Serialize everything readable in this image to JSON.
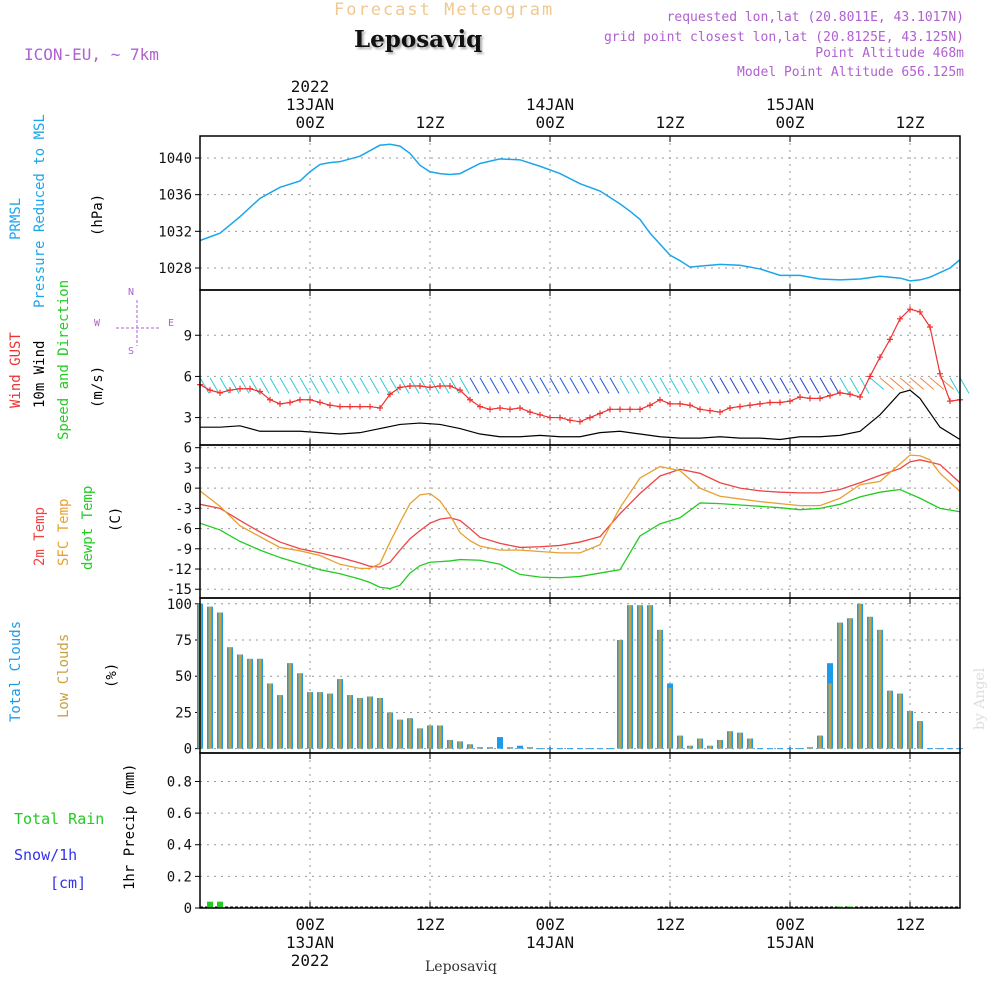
{
  "header": {
    "subtitle": "Forecast Meteogram",
    "title": "Leposaviq",
    "model": "ICON-EU, ~ 7km",
    "requested": "requested lon,lat (20.8011E, 43.1017N)",
    "grid_point": "grid point closest lon,lat (20.8125E, 43.125N)",
    "point_alt": "Point Altitude 468m",
    "model_alt": "Model Point Altitude 656.125m",
    "watermark": "by Angel",
    "footer": "Leposaviq"
  },
  "time_axis": {
    "top_year": "2022",
    "bottom_year": "2022",
    "major": [
      {
        "t": 0,
        "hour": "00Z",
        "date": "13JAN"
      },
      {
        "t": 12,
        "hour": "12Z",
        "date": ""
      },
      {
        "t": 24,
        "hour": "00Z",
        "date": "14JAN"
      },
      {
        "t": 36,
        "hour": "12Z",
        "date": ""
      },
      {
        "t": 48,
        "hour": "00Z",
        "date": "15JAN"
      },
      {
        "t": 60,
        "hour": "12Z",
        "date": ""
      }
    ],
    "range_hours": [
      -11,
      65
    ]
  },
  "colors": {
    "pressure": "#1ba6ea",
    "gust": "#ee3333",
    "wind": "#000000",
    "temp": "#ee4444",
    "sfc": "#e8a030",
    "dewpt": "#22cc22",
    "total_clouds": "#1c9bea",
    "low_clouds": "#c8a040",
    "rain": "#22cc22",
    "snow": "#3333ee",
    "label_purple": "#b060d0"
  },
  "panel_labels": {
    "pressure": {
      "line1": "PRMSL",
      "line2": "Pressure Reduced to MSL",
      "unit": "(hPa)"
    },
    "wind": {
      "line1": "Wind GUST",
      "line2": "10m Wind",
      "line3": "Speed and Direction",
      "unit": "(m/s)",
      "compass_n": "N",
      "compass_s": "S",
      "compass_w": "W",
      "compass_e": "E"
    },
    "temp": {
      "line1": "2m Temp",
      "line2": "SFC Temp",
      "line3": "dewpt Temp",
      "unit": "(C)"
    },
    "clouds": {
      "line1": "Total Clouds",
      "line2": "Low Clouds",
      "unit": "(%)"
    },
    "precip": {
      "line1": "Total  Rain",
      "line2": "Snow/1h",
      "line3": "[cm]",
      "unit": "1hr Precip (mm)"
    }
  },
  "chart_data": [
    {
      "type": "line",
      "name": "pressure",
      "ylabel": "(hPa)",
      "yticks": [
        1028,
        1032,
        1036,
        1040
      ],
      "ylim": [
        1025.6,
        1042.4
      ],
      "x": [
        -11,
        -9,
        -7,
        -5,
        -3,
        -1,
        0,
        1,
        2,
        3,
        5,
        7,
        8,
        9,
        10,
        11,
        12,
        13,
        14,
        15,
        17,
        19,
        21,
        23,
        25,
        27,
        29,
        31,
        32,
        33,
        34,
        35,
        36,
        37,
        38,
        39,
        41,
        43,
        45,
        47,
        49,
        51,
        53,
        55,
        57,
        59,
        60,
        61,
        62,
        64,
        65
      ],
      "values": [
        1031,
        1031.8,
        1033.6,
        1035.6,
        1036.8,
        1037.5,
        1038.5,
        1039.3,
        1039.5,
        1039.6,
        1040.2,
        1041.4,
        1041.5,
        1041.3,
        1040.5,
        1039.2,
        1038.5,
        1038.3,
        1038.2,
        1038.3,
        1039.4,
        1039.9,
        1039.8,
        1039.1,
        1038.3,
        1037.2,
        1036.4,
        1035,
        1034.2,
        1033.3,
        1031.8,
        1030.6,
        1029.4,
        1028.8,
        1028.1,
        1028.2,
        1028.4,
        1028.3,
        1027.9,
        1027.2,
        1027.2,
        1026.8,
        1026.7,
        1026.8,
        1027.1,
        1026.9,
        1026.6,
        1026.7,
        1027,
        1028,
        1028.9
      ]
    },
    {
      "type": "line",
      "name": "wind",
      "ylabel": "(m/s)",
      "yticks": [
        3,
        6,
        9
      ],
      "ylim": [
        1,
        12.3
      ],
      "series": [
        {
          "name": "Wind GUST",
          "color": "#ee3333",
          "x": [
            -11,
            -10,
            -9,
            -8,
            -7,
            -6,
            -5,
            -4,
            -3,
            -2,
            -1,
            0,
            1,
            2,
            3,
            4,
            5,
            6,
            7,
            8,
            9,
            10,
            11,
            12,
            13,
            14,
            15,
            16,
            17,
            18,
            19,
            20,
            21,
            22,
            23,
            24,
            25,
            26,
            27,
            28,
            29,
            30,
            31,
            32,
            33,
            34,
            35,
            36,
            37,
            38,
            39,
            40,
            41,
            42,
            43,
            44,
            45,
            46,
            47,
            48,
            49,
            50,
            51,
            52,
            53,
            54,
            55,
            56,
            57,
            58,
            59,
            60,
            61,
            62,
            63,
            64,
            65
          ],
          "values": [
            5.4,
            5.0,
            4.8,
            5.0,
            5.1,
            5.1,
            4.9,
            4.3,
            4.0,
            4.1,
            4.3,
            4.3,
            4.1,
            3.9,
            3.8,
            3.8,
            3.8,
            3.8,
            3.7,
            4.7,
            5.2,
            5.3,
            5.3,
            5.2,
            5.3,
            5.3,
            5.0,
            4.3,
            3.8,
            3.6,
            3.7,
            3.6,
            3.7,
            3.4,
            3.2,
            3.0,
            3.0,
            2.8,
            2.7,
            3.0,
            3.3,
            3.6,
            3.6,
            3.6,
            3.6,
            3.9,
            4.3,
            4.0,
            4.0,
            3.9,
            3.6,
            3.5,
            3.4,
            3.7,
            3.8,
            3.9,
            4.0,
            4.1,
            4.1,
            4.2,
            4.5,
            4.4,
            4.4,
            4.6,
            4.8,
            4.7,
            4.5,
            6.0,
            7.4,
            8.7,
            10.2,
            10.9,
            10.7,
            9.6,
            6.2,
            4.2,
            4.3
          ]
        },
        {
          "name": "10m Wind",
          "color": "#000000",
          "x": [
            -11,
            -9,
            -7,
            -5,
            -3,
            -1,
            1,
            3,
            5,
            7,
            9,
            11,
            13,
            15,
            17,
            19,
            21,
            23,
            25,
            27,
            29,
            31,
            33,
            35,
            37,
            39,
            41,
            43,
            45,
            47,
            49,
            51,
            53,
            55,
            57,
            59,
            60,
            61,
            63,
            65
          ],
          "values": [
            2.3,
            2.3,
            2.4,
            2.0,
            2.0,
            2.0,
            1.9,
            1.8,
            1.9,
            2.2,
            2.5,
            2.6,
            2.5,
            2.2,
            1.8,
            1.6,
            1.6,
            1.7,
            1.6,
            1.6,
            1.9,
            2.0,
            1.8,
            1.6,
            1.5,
            1.5,
            1.6,
            1.5,
            1.5,
            1.4,
            1.6,
            1.6,
            1.7,
            2.0,
            3.2,
            4.8,
            5.0,
            4.4,
            2.3,
            1.4
          ]
        }
      ]
    },
    {
      "type": "line",
      "name": "temperature",
      "ylabel": "(C)",
      "yticks": [
        -15,
        -12,
        -9,
        -6,
        -3,
        0,
        3,
        6
      ],
      "ylim": [
        -16.3,
        6.4
      ],
      "series": [
        {
          "name": "2m Temp",
          "color": "#ee4444",
          "x": [
            -11,
            -9,
            -7,
            -5,
            -3,
            -1,
            1,
            3,
            5,
            6,
            7,
            8,
            9,
            10,
            11,
            12,
            13,
            14,
            15,
            16,
            17,
            19,
            21,
            23,
            25,
            27,
            29,
            31,
            33,
            35,
            37,
            39,
            41,
            43,
            45,
            47,
            49,
            51,
            53,
            55,
            57,
            59,
            60,
            61,
            63,
            65
          ],
          "values": [
            -2.4,
            -3.0,
            -4.8,
            -6.5,
            -8.0,
            -9.0,
            -9.6,
            -10.3,
            -11.1,
            -11.6,
            -11.7,
            -11.0,
            -9.2,
            -7.5,
            -6.3,
            -5.2,
            -4.6,
            -4.4,
            -4.8,
            -6.0,
            -7.3,
            -8.2,
            -8.8,
            -8.7,
            -8.5,
            -8.0,
            -7.2,
            -3.8,
            -0.8,
            1.8,
            2.8,
            2.2,
            0.8,
            0.0,
            -0.4,
            -0.6,
            -0.7,
            -0.7,
            -0.2,
            0.8,
            1.9,
            2.9,
            3.9,
            4.2,
            3.5,
            0.8
          ]
        },
        {
          "name": "SFC Temp",
          "color": "#e8a030",
          "x": [
            -11,
            -9,
            -7,
            -5,
            -3,
            -1,
            1,
            3,
            5,
            6,
            7,
            8,
            9,
            10,
            11,
            12,
            13,
            14,
            15,
            16,
            17,
            19,
            21,
            23,
            25,
            27,
            29,
            31,
            33,
            35,
            37,
            39,
            41,
            43,
            45,
            47,
            49,
            51,
            53,
            55,
            57,
            59,
            60,
            61,
            62,
            63,
            65
          ],
          "values": [
            -0.4,
            -2.7,
            -5.6,
            -7.2,
            -8.8,
            -9.3,
            -10.0,
            -11.3,
            -11.9,
            -11.9,
            -11.2,
            -8.0,
            -5.1,
            -2.3,
            -1.0,
            -0.8,
            -1.9,
            -4.0,
            -6.6,
            -7.8,
            -8.6,
            -9.2,
            -9.2,
            -9.4,
            -9.6,
            -9.6,
            -8.4,
            -2.9,
            1.5,
            3.2,
            2.6,
            0.0,
            -1.2,
            -1.6,
            -2.0,
            -2.3,
            -2.6,
            -2.6,
            -1.5,
            0.5,
            1.0,
            3.6,
            4.9,
            4.8,
            4.2,
            2.2,
            -0.5
          ]
        },
        {
          "name": "dewpt Temp",
          "color": "#22cc22",
          "x": [
            -11,
            -9,
            -7,
            -5,
            -3,
            -1,
            1,
            3,
            5,
            6,
            7,
            8,
            9,
            10,
            11,
            12,
            13,
            14,
            15,
            17,
            19,
            21,
            23,
            25,
            27,
            29,
            31,
            33,
            35,
            37,
            39,
            41,
            43,
            45,
            47,
            49,
            51,
            53,
            55,
            57,
            59,
            61,
            63,
            65
          ],
          "values": [
            -5.2,
            -6.2,
            -7.9,
            -9.2,
            -10.3,
            -11.2,
            -12.1,
            -12.7,
            -13.5,
            -14.0,
            -14.7,
            -14.9,
            -14.4,
            -12.6,
            -11.5,
            -11.0,
            -10.9,
            -10.8,
            -10.6,
            -10.7,
            -11.3,
            -12.8,
            -13.2,
            -13.3,
            -13.1,
            -12.6,
            -12.1,
            -7.1,
            -5.3,
            -4.4,
            -2.2,
            -2.3,
            -2.5,
            -2.7,
            -2.9,
            -3.2,
            -3.0,
            -2.4,
            -1.3,
            -0.6,
            -0.2,
            -1.5,
            -3.0,
            -3.5
          ]
        }
      ]
    },
    {
      "type": "bar",
      "name": "clouds",
      "ylabel": "(%)",
      "yticks": [
        0,
        25,
        50,
        75,
        100
      ],
      "ylim": [
        -3,
        104
      ],
      "x": [
        -11,
        -10,
        -9,
        -8,
        -7,
        -6,
        -5,
        -4,
        -3,
        -2,
        -1,
        0,
        1,
        2,
        3,
        4,
        5,
        6,
        7,
        8,
        9,
        10,
        11,
        12,
        13,
        14,
        15,
        16,
        17,
        18,
        19,
        20,
        21,
        22,
        23,
        24,
        25,
        26,
        27,
        28,
        29,
        30,
        31,
        32,
        33,
        34,
        35,
        36,
        37,
        38,
        39,
        40,
        41,
        42,
        43,
        44,
        45,
        46,
        47,
        48,
        49,
        50,
        51,
        52,
        53,
        54,
        55,
        56,
        57,
        58,
        59,
        60,
        61,
        62,
        63,
        64,
        65
      ],
      "series": [
        {
          "name": "Total Clouds",
          "color": "#1c9bea",
          "values": [
            100,
            98,
            94,
            70,
            65,
            62,
            62,
            45,
            37,
            59,
            52,
            39,
            39,
            38,
            48,
            37,
            35,
            36,
            35,
            25,
            20,
            21,
            14,
            16,
            16,
            6,
            5,
            3,
            1,
            1,
            8,
            1,
            2,
            1,
            0,
            0,
            0,
            0,
            0,
            0,
            0,
            0,
            75,
            99,
            99,
            99,
            82,
            45,
            9,
            2,
            7,
            2,
            6,
            12,
            11,
            7,
            0,
            0,
            0,
            0,
            0,
            1,
            9,
            59,
            87,
            90,
            100,
            91,
            82,
            40,
            38,
            26,
            19,
            0,
            0,
            0,
            0
          ]
        },
        {
          "name": "Low Clouds",
          "color": "#c8a040",
          "values": [
            100,
            98,
            94,
            70,
            65,
            62,
            62,
            45,
            37,
            59,
            52,
            39,
            39,
            38,
            48,
            37,
            35,
            36,
            35,
            25,
            20,
            21,
            14,
            16,
            16,
            6,
            5,
            3,
            1,
            1,
            0,
            1,
            0,
            1,
            0,
            0,
            0,
            0,
            0,
            0,
            0,
            0,
            75,
            99,
            99,
            99,
            82,
            42,
            9,
            2,
            7,
            2,
            6,
            12,
            11,
            7,
            0,
            0,
            0,
            0,
            0,
            1,
            9,
            45,
            87,
            90,
            100,
            91,
            82,
            40,
            38,
            26,
            19,
            0,
            0,
            0,
            0
          ]
        }
      ]
    },
    {
      "type": "bar",
      "name": "precip",
      "ylabel": "1hr Precip (mm)",
      "yticks": [
        0,
        0.2,
        0.4,
        0.6,
        0.8
      ],
      "ytick_labels": [
        "0",
        "0.2",
        "0.4",
        "0.6",
        "0.8"
      ],
      "ylim": [
        0,
        0.98
      ],
      "series": [
        {
          "name": "Total Rain",
          "color": "#22cc22",
          "x": [
            -10,
            -9,
            53,
            54
          ],
          "values": [
            0.04,
            0.04,
            0.005,
            0.005
          ]
        },
        {
          "name": "Snow/1h",
          "color": "#3333ee",
          "x": [],
          "values": []
        }
      ]
    }
  ]
}
